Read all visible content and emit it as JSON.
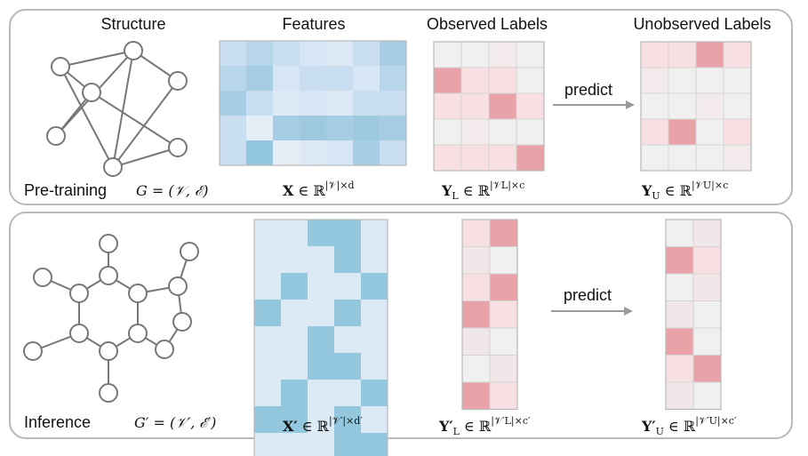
{
  "panels": {
    "pretraining": {
      "label": "Pre-training",
      "graph_label": "G = (𝒱, ℰ)",
      "headers": {
        "structure": "Structure",
        "features": "Features",
        "observed": "Observed Labels",
        "unobserved": "Unobserved Labels"
      },
      "features_formula": {
        "var": "X",
        "rest": " ∈ ℝ",
        "sup": "|𝒱|×d"
      },
      "observed_formula": {
        "var": "Y",
        "sub": "L",
        "rest": " ∈ ℝ",
        "sup": "|𝒱L|×c"
      },
      "unobserved_formula": {
        "var": "Y",
        "sub": "U",
        "rest": " ∈ ℝ",
        "sup": "|𝒱U|×c"
      },
      "arrow_label": "predict"
    },
    "inference": {
      "label": "Inference",
      "graph_label": "G′ = (𝒱′, ℰ′)",
      "features_formula": {
        "var": "X′",
        "rest": " ∈ ℝ",
        "sup": "|𝒱′|×d′"
      },
      "observed_formula": {
        "var": "Y′",
        "sub": "L",
        "rest": " ∈ ℝ",
        "sup": "|𝒱′L|×c′"
      },
      "unobserved_formula": {
        "var": "Y′",
        "sub": "U",
        "rest": " ∈ ℝ",
        "sup": "|𝒱′U|×c′"
      },
      "arrow_label": "predict"
    }
  },
  "colors": {
    "panel_border": "#b9b9b9",
    "blue_dark": "#93c7dd",
    "blue_light": "#dde9f5",
    "red_dark": "#e8a2a8",
    "red_light": "#f7dfe2",
    "gray_cell": "#f0f0f0",
    "arrow": "#9a9a9a"
  }
}
